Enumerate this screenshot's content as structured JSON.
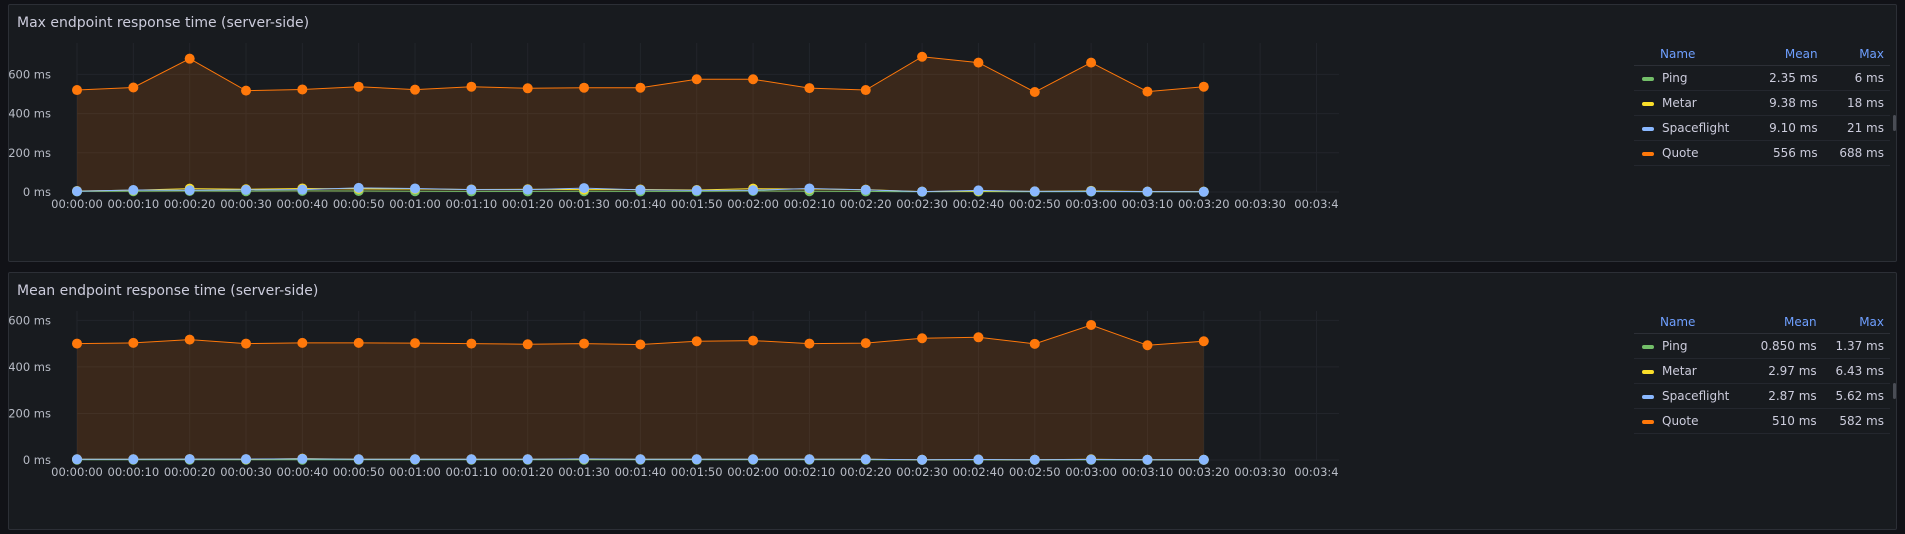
{
  "colors": {
    "Ping": "#73bf69",
    "Metar": "#fade2a",
    "Spaceflight": "#8ab8ff",
    "Quote": "#ff780a"
  },
  "legend_headers": {
    "name": "Name",
    "mean": "Mean",
    "max": "Max"
  },
  "panels": [
    {
      "title": "Max endpoint response time (server-side)",
      "legend_rows": [
        {
          "name": "Ping",
          "mean": "2.35 ms",
          "max": "6 ms"
        },
        {
          "name": "Metar",
          "mean": "9.38 ms",
          "max": "18 ms"
        },
        {
          "name": "Spaceflight",
          "mean": "9.10 ms",
          "max": "21 ms"
        },
        {
          "name": "Quote",
          "mean": "556 ms",
          "max": "688 ms"
        }
      ]
    },
    {
      "title": "Mean endpoint response time (server-side)",
      "legend_rows": [
        {
          "name": "Ping",
          "mean": "0.850 ms",
          "max": "1.37 ms"
        },
        {
          "name": "Metar",
          "mean": "2.97 ms",
          "max": "6.43 ms"
        },
        {
          "name": "Spaceflight",
          "mean": "2.87 ms",
          "max": "5.62 ms"
        },
        {
          "name": "Quote",
          "mean": "510 ms",
          "max": "582 ms"
        }
      ]
    }
  ],
  "chart_data": [
    {
      "type": "line",
      "title": "Max endpoint response time (server-side)",
      "y_ticks": [
        "0 ms",
        "200 ms",
        "400 ms",
        "600 ms"
      ],
      "ylim": [
        0,
        760
      ],
      "x_ticks": [
        "00:00:00",
        "00:00:10",
        "00:00:20",
        "00:00:30",
        "00:00:40",
        "00:00:50",
        "00:01:00",
        "00:01:10",
        "00:01:20",
        "00:01:30",
        "00:01:40",
        "00:01:50",
        "00:02:00",
        "00:02:10",
        "00:02:20",
        "00:02:30",
        "00:02:40",
        "00:02:50",
        "00:03:00",
        "00:03:10",
        "00:03:20",
        "00:03:30",
        "00:03:4"
      ],
      "xlim_seconds": [
        0,
        224
      ],
      "x_seconds": [
        0,
        10,
        20,
        30,
        40,
        50,
        60,
        70,
        80,
        90,
        100,
        110,
        120,
        130,
        140,
        150,
        160,
        170,
        180,
        190,
        200
      ],
      "grid": true,
      "legend_placement": "right",
      "series": [
        {
          "name": "Quote",
          "fill": true,
          "values": [
            520,
            533,
            680,
            517,
            523,
            537,
            522,
            537,
            529,
            532,
            532,
            575,
            575,
            530,
            520,
            690,
            660,
            510,
            660,
            512,
            537
          ]
        },
        {
          "name": "Ping",
          "values": [
            3,
            4,
            5,
            4,
            6,
            5,
            4,
            3,
            3,
            4,
            3,
            3,
            5,
            4,
            3,
            1,
            2,
            1,
            2,
            1,
            1
          ]
        },
        {
          "name": "Metar",
          "values": [
            5,
            9,
            17,
            14,
            18,
            16,
            15,
            13,
            14,
            12,
            13,
            10,
            17,
            15,
            12,
            2,
            5,
            3,
            6,
            2,
            2
          ]
        },
        {
          "name": "Spaceflight",
          "values": [
            4,
            10,
            9,
            11,
            12,
            21,
            18,
            12,
            12,
            20,
            11,
            8,
            9,
            18,
            11,
            2,
            8,
            3,
            4,
            2,
            1
          ]
        }
      ]
    },
    {
      "type": "line",
      "title": "Mean endpoint response time (server-side)",
      "y_ticks": [
        "0 ms",
        "200 ms",
        "400 ms",
        "600 ms"
      ],
      "ylim": [
        0,
        640
      ],
      "x_ticks": [
        "00:00:00",
        "00:00:10",
        "00:00:20",
        "00:00:30",
        "00:00:40",
        "00:00:50",
        "00:01:00",
        "00:01:10",
        "00:01:20",
        "00:01:30",
        "00:01:40",
        "00:01:50",
        "00:02:00",
        "00:02:10",
        "00:02:20",
        "00:02:30",
        "00:02:40",
        "00:02:50",
        "00:03:00",
        "00:03:10",
        "00:03:20",
        "00:03:30",
        "00:03:4"
      ],
      "xlim_seconds": [
        0,
        224
      ],
      "x_seconds": [
        0,
        10,
        20,
        30,
        40,
        50,
        60,
        70,
        80,
        90,
        100,
        110,
        120,
        130,
        140,
        150,
        160,
        170,
        180,
        190,
        200
      ],
      "grid": true,
      "legend_placement": "right",
      "series": [
        {
          "name": "Quote",
          "fill": true,
          "values": [
            500,
            503,
            517,
            500,
            503,
            503,
            502,
            500,
            497,
            500,
            496,
            510,
            513,
            500,
            502,
            523,
            527,
            499,
            580,
            493,
            510
          ]
        },
        {
          "name": "Ping",
          "values": [
            1,
            1,
            1,
            1,
            1.3,
            1,
            1,
            1,
            1,
            1,
            1,
            1,
            1,
            1,
            1,
            0.5,
            0.6,
            0.4,
            0.8,
            0.4,
            0.5
          ]
        },
        {
          "name": "Metar",
          "values": [
            3,
            3,
            4,
            3,
            6,
            3,
            3,
            3,
            3,
            4,
            3,
            3,
            3,
            3,
            3,
            1,
            2,
            1,
            3,
            1,
            1
          ]
        },
        {
          "name": "Spaceflight",
          "values": [
            3,
            3,
            4,
            4,
            5,
            3,
            3,
            3,
            3,
            5,
            3,
            3,
            3,
            3,
            3,
            1,
            2,
            1,
            2,
            1,
            1
          ]
        }
      ]
    }
  ]
}
